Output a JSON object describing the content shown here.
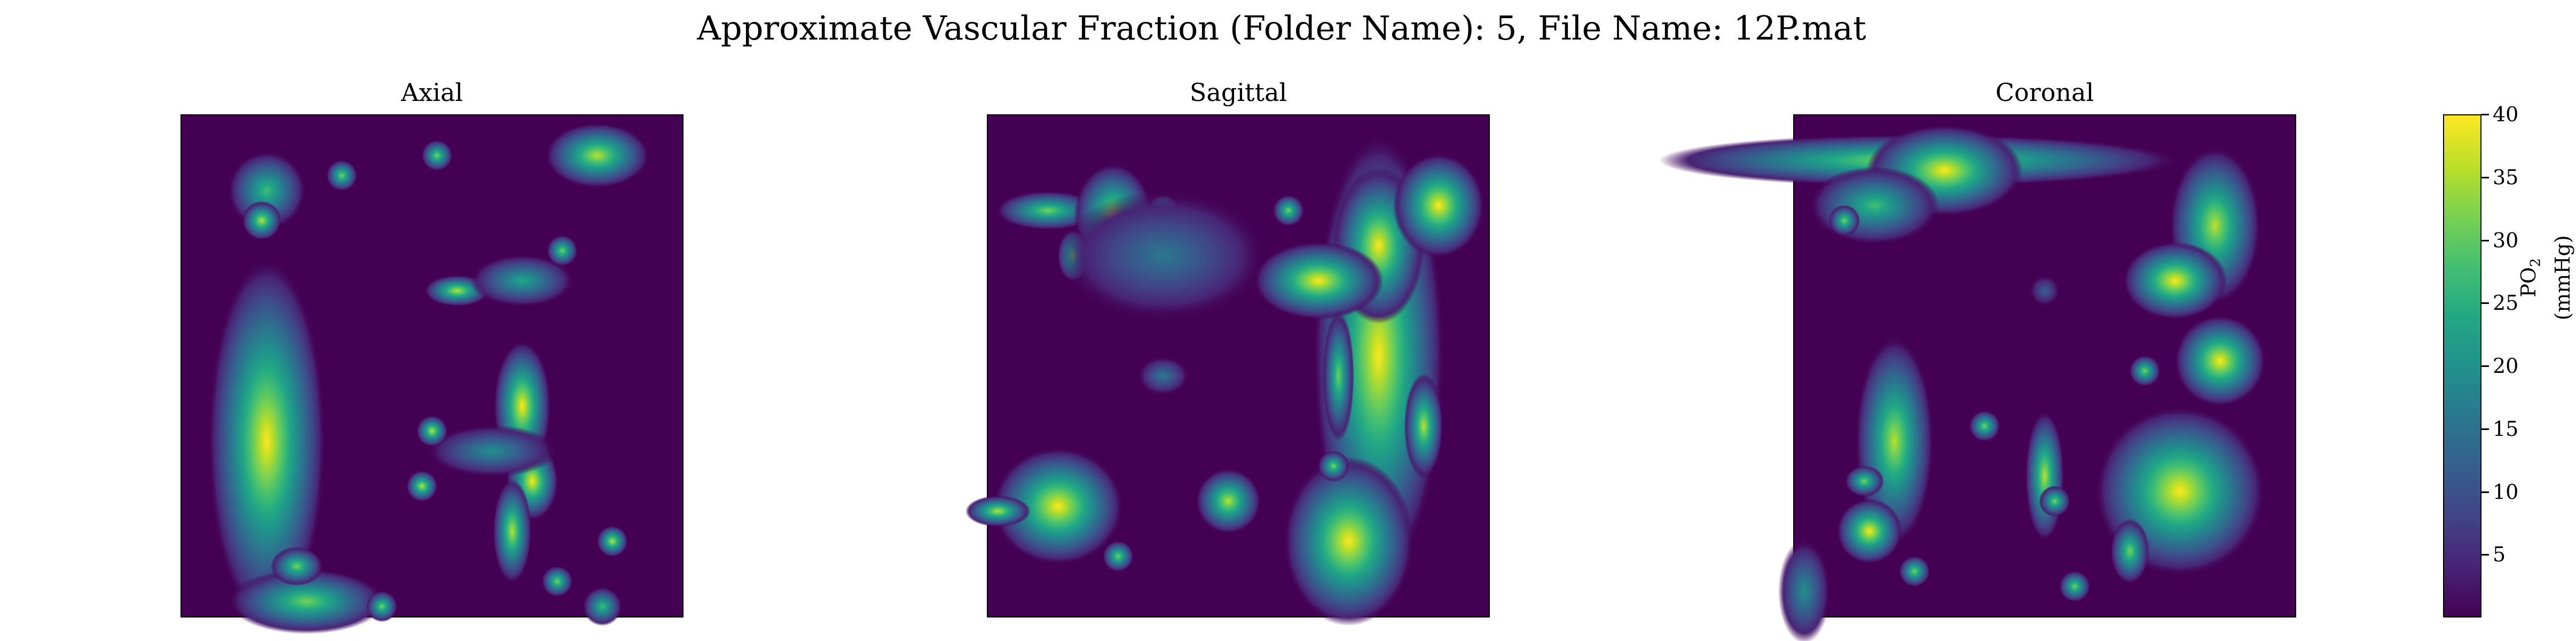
{
  "figure": {
    "suptitle": "Approximate Vascular Fraction (Folder Name): 5, File Name: 12P.mat"
  },
  "chart_data": [
    {
      "type": "heatmap",
      "title": "Axial",
      "colormap": "viridis",
      "value_range": [
        0,
        40
      ],
      "hotspots": [
        {
          "cx": 0.17,
          "cy": 0.65,
          "sx": 0.045,
          "sy": 0.14,
          "v": 40
        },
        {
          "cx": 0.17,
          "cy": 0.15,
          "sx": 0.03,
          "sy": 0.03,
          "v": 28
        },
        {
          "cx": 0.16,
          "cy": 0.21,
          "sx": 0.015,
          "sy": 0.015,
          "v": 34
        },
        {
          "cx": 0.32,
          "cy": 0.12,
          "sx": 0.012,
          "sy": 0.012,
          "v": 30
        },
        {
          "cx": 0.51,
          "cy": 0.08,
          "sx": 0.012,
          "sy": 0.012,
          "v": 30
        },
        {
          "cx": 0.83,
          "cy": 0.08,
          "sx": 0.04,
          "sy": 0.025,
          "v": 34
        },
        {
          "cx": 0.55,
          "cy": 0.35,
          "sx": 0.025,
          "sy": 0.012,
          "v": 34
        },
        {
          "cx": 0.68,
          "cy": 0.33,
          "sx": 0.04,
          "sy": 0.02,
          "v": 22
        },
        {
          "cx": 0.76,
          "cy": 0.27,
          "sx": 0.012,
          "sy": 0.012,
          "v": 32
        },
        {
          "cx": 0.68,
          "cy": 0.58,
          "sx": 0.022,
          "sy": 0.05,
          "v": 40
        },
        {
          "cx": 0.7,
          "cy": 0.73,
          "sx": 0.02,
          "sy": 0.03,
          "v": 38
        },
        {
          "cx": 0.66,
          "cy": 0.83,
          "sx": 0.015,
          "sy": 0.04,
          "v": 36
        },
        {
          "cx": 0.62,
          "cy": 0.67,
          "sx": 0.05,
          "sy": 0.02,
          "v": 20
        },
        {
          "cx": 0.5,
          "cy": 0.63,
          "sx": 0.012,
          "sy": 0.012,
          "v": 34
        },
        {
          "cx": 0.48,
          "cy": 0.74,
          "sx": 0.012,
          "sy": 0.012,
          "v": 34
        },
        {
          "cx": 0.86,
          "cy": 0.85,
          "sx": 0.012,
          "sy": 0.012,
          "v": 34
        },
        {
          "cx": 0.75,
          "cy": 0.93,
          "sx": 0.012,
          "sy": 0.012,
          "v": 30
        },
        {
          "cx": 0.25,
          "cy": 0.97,
          "sx": 0.06,
          "sy": 0.025,
          "v": 32
        },
        {
          "cx": 0.23,
          "cy": 0.9,
          "sx": 0.02,
          "sy": 0.015,
          "v": 30
        },
        {
          "cx": 0.4,
          "cy": 0.98,
          "sx": 0.012,
          "sy": 0.012,
          "v": 30
        },
        {
          "cx": 0.84,
          "cy": 0.98,
          "sx": 0.015,
          "sy": 0.015,
          "v": 28
        }
      ]
    },
    {
      "type": "heatmap",
      "title": "Sagittal",
      "colormap": "viridis",
      "value_range": [
        0,
        40
      ],
      "hotspots": [
        {
          "cx": 0.78,
          "cy": 0.48,
          "sx": 0.05,
          "sy": 0.17,
          "v": 40
        },
        {
          "cx": 0.78,
          "cy": 0.26,
          "sx": 0.035,
          "sy": 0.06,
          "v": 40
        },
        {
          "cx": 0.9,
          "cy": 0.18,
          "sx": 0.035,
          "sy": 0.04,
          "v": 38
        },
        {
          "cx": 0.66,
          "cy": 0.33,
          "sx": 0.05,
          "sy": 0.03,
          "v": 40
        },
        {
          "cx": 0.87,
          "cy": 0.62,
          "sx": 0.015,
          "sy": 0.04,
          "v": 36
        },
        {
          "cx": 0.7,
          "cy": 0.52,
          "sx": 0.012,
          "sy": 0.05,
          "v": 30
        },
        {
          "cx": 0.12,
          "cy": 0.19,
          "sx": 0.04,
          "sy": 0.015,
          "v": 30
        },
        {
          "cx": 0.25,
          "cy": 0.2,
          "sx": 0.03,
          "sy": 0.04,
          "v": 34
        },
        {
          "cx": 0.17,
          "cy": 0.28,
          "sx": 0.012,
          "sy": 0.02,
          "v": 30
        },
        {
          "cx": 0.35,
          "cy": 0.19,
          "sx": 0.012,
          "sy": 0.012,
          "v": 30
        },
        {
          "cx": 0.41,
          "cy": 0.33,
          "sx": 0.012,
          "sy": 0.012,
          "v": 30
        },
        {
          "cx": 0.6,
          "cy": 0.19,
          "sx": 0.012,
          "sy": 0.012,
          "v": 30
        },
        {
          "cx": 0.35,
          "cy": 0.28,
          "sx": 0.08,
          "sy": 0.05,
          "v": 16
        },
        {
          "cx": 0.14,
          "cy": 0.78,
          "sx": 0.05,
          "sy": 0.045,
          "v": 40
        },
        {
          "cx": 0.02,
          "cy": 0.79,
          "sx": 0.025,
          "sy": 0.012,
          "v": 34
        },
        {
          "cx": 0.72,
          "cy": 0.85,
          "sx": 0.05,
          "sy": 0.065,
          "v": 40
        },
        {
          "cx": 0.48,
          "cy": 0.77,
          "sx": 0.025,
          "sy": 0.025,
          "v": 34
        },
        {
          "cx": 0.69,
          "cy": 0.7,
          "sx": 0.012,
          "sy": 0.012,
          "v": 30
        },
        {
          "cx": 0.26,
          "cy": 0.88,
          "sx": 0.012,
          "sy": 0.012,
          "v": 30
        },
        {
          "cx": 0.35,
          "cy": 0.52,
          "sx": 0.02,
          "sy": 0.015,
          "v": 16
        }
      ]
    },
    {
      "type": "heatmap",
      "title": "Coronal",
      "colormap": "viridis",
      "value_range": [
        0,
        40
      ],
      "hotspots": [
        {
          "cx": 0.25,
          "cy": 0.09,
          "sx": 0.2,
          "sy": 0.02,
          "v": 36
        },
        {
          "cx": 0.3,
          "cy": 0.11,
          "sx": 0.06,
          "sy": 0.035,
          "v": 40
        },
        {
          "cx": 0.16,
          "cy": 0.18,
          "sx": 0.05,
          "sy": 0.03,
          "v": 26
        },
        {
          "cx": 0.1,
          "cy": 0.21,
          "sx": 0.012,
          "sy": 0.012,
          "v": 32
        },
        {
          "cx": 0.84,
          "cy": 0.22,
          "sx": 0.035,
          "sy": 0.06,
          "v": 34
        },
        {
          "cx": 0.76,
          "cy": 0.33,
          "sx": 0.04,
          "sy": 0.03,
          "v": 40
        },
        {
          "cx": 0.85,
          "cy": 0.49,
          "sx": 0.035,
          "sy": 0.035,
          "v": 40
        },
        {
          "cx": 0.7,
          "cy": 0.51,
          "sx": 0.012,
          "sy": 0.012,
          "v": 30
        },
        {
          "cx": 0.2,
          "cy": 0.65,
          "sx": 0.03,
          "sy": 0.08,
          "v": 36
        },
        {
          "cx": 0.14,
          "cy": 0.73,
          "sx": 0.015,
          "sy": 0.012,
          "v": 30
        },
        {
          "cx": 0.38,
          "cy": 0.62,
          "sx": 0.012,
          "sy": 0.012,
          "v": 30
        },
        {
          "cx": 0.5,
          "cy": 0.72,
          "sx": 0.015,
          "sy": 0.05,
          "v": 34
        },
        {
          "cx": 0.52,
          "cy": 0.77,
          "sx": 0.012,
          "sy": 0.012,
          "v": 30
        },
        {
          "cx": 0.77,
          "cy": 0.75,
          "sx": 0.065,
          "sy": 0.065,
          "v": 40
        },
        {
          "cx": 0.15,
          "cy": 0.83,
          "sx": 0.025,
          "sy": 0.025,
          "v": 38
        },
        {
          "cx": 0.24,
          "cy": 0.91,
          "sx": 0.012,
          "sy": 0.012,
          "v": 30
        },
        {
          "cx": 0.67,
          "cy": 0.87,
          "sx": 0.015,
          "sy": 0.025,
          "v": 30
        },
        {
          "cx": 0.56,
          "cy": 0.94,
          "sx": 0.012,
          "sy": 0.012,
          "v": 30
        },
        {
          "cx": 0.5,
          "cy": 0.35,
          "sx": 0.012,
          "sy": 0.012,
          "v": 12
        },
        {
          "cx": 0.02,
          "cy": 0.95,
          "sx": 0.02,
          "sy": 0.04,
          "v": 18
        }
      ]
    }
  ],
  "colorbar": {
    "label": "PO2 (mmHg)",
    "label_base": "PO",
    "label_sub": "2",
    "label_unit": " (mmHg)",
    "range": [
      0,
      40
    ],
    "ticks": [
      "5",
      "10",
      "15",
      "20",
      "25",
      "30",
      "35",
      "40"
    ]
  },
  "colors": {
    "viridis_low": "#440154",
    "viridis_high": "#fde725"
  }
}
